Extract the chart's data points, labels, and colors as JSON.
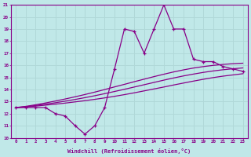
{
  "xlabel": "Windchill (Refroidissement éolien,°C)",
  "xlim": [
    -0.5,
    23.5
  ],
  "ylim": [
    10,
    21
  ],
  "yticks": [
    10,
    11,
    12,
    13,
    14,
    15,
    16,
    17,
    18,
    19,
    20,
    21
  ],
  "xticks": [
    0,
    1,
    2,
    3,
    4,
    5,
    6,
    7,
    8,
    9,
    10,
    11,
    12,
    13,
    14,
    15,
    16,
    17,
    18,
    19,
    20,
    21,
    22,
    23
  ],
  "bg_color": "#c0e8e8",
  "line_color": "#880088",
  "grid_color": "#b0d8d8",
  "data_line": [
    12.5,
    12.5,
    12.5,
    12.5,
    12.0,
    11.8,
    11.0,
    10.3,
    11.0,
    12.5,
    15.7,
    19.0,
    18.8,
    17.0,
    19.0,
    21.0,
    19.0,
    19.0,
    16.5,
    16.3,
    16.3,
    15.9,
    15.7,
    15.5
  ],
  "trend1": [
    12.5,
    12.55,
    12.62,
    12.7,
    12.78,
    12.87,
    12.97,
    13.07,
    13.18,
    13.3,
    13.43,
    13.57,
    13.72,
    13.88,
    14.04,
    14.2,
    14.37,
    14.53,
    14.69,
    14.84,
    14.98,
    15.1,
    15.2,
    15.3
  ],
  "trend2": [
    12.5,
    12.57,
    12.67,
    12.78,
    12.9,
    13.03,
    13.17,
    13.32,
    13.48,
    13.65,
    13.83,
    14.01,
    14.2,
    14.39,
    14.58,
    14.77,
    14.95,
    15.12,
    15.27,
    15.41,
    15.53,
    15.63,
    15.71,
    15.78
  ],
  "trend3": [
    12.5,
    12.6,
    12.73,
    12.88,
    13.04,
    13.21,
    13.39,
    13.58,
    13.78,
    13.99,
    14.21,
    14.42,
    14.64,
    14.85,
    15.06,
    15.26,
    15.45,
    15.62,
    15.77,
    15.89,
    15.99,
    16.07,
    16.13,
    16.17
  ],
  "marker_style": "+"
}
